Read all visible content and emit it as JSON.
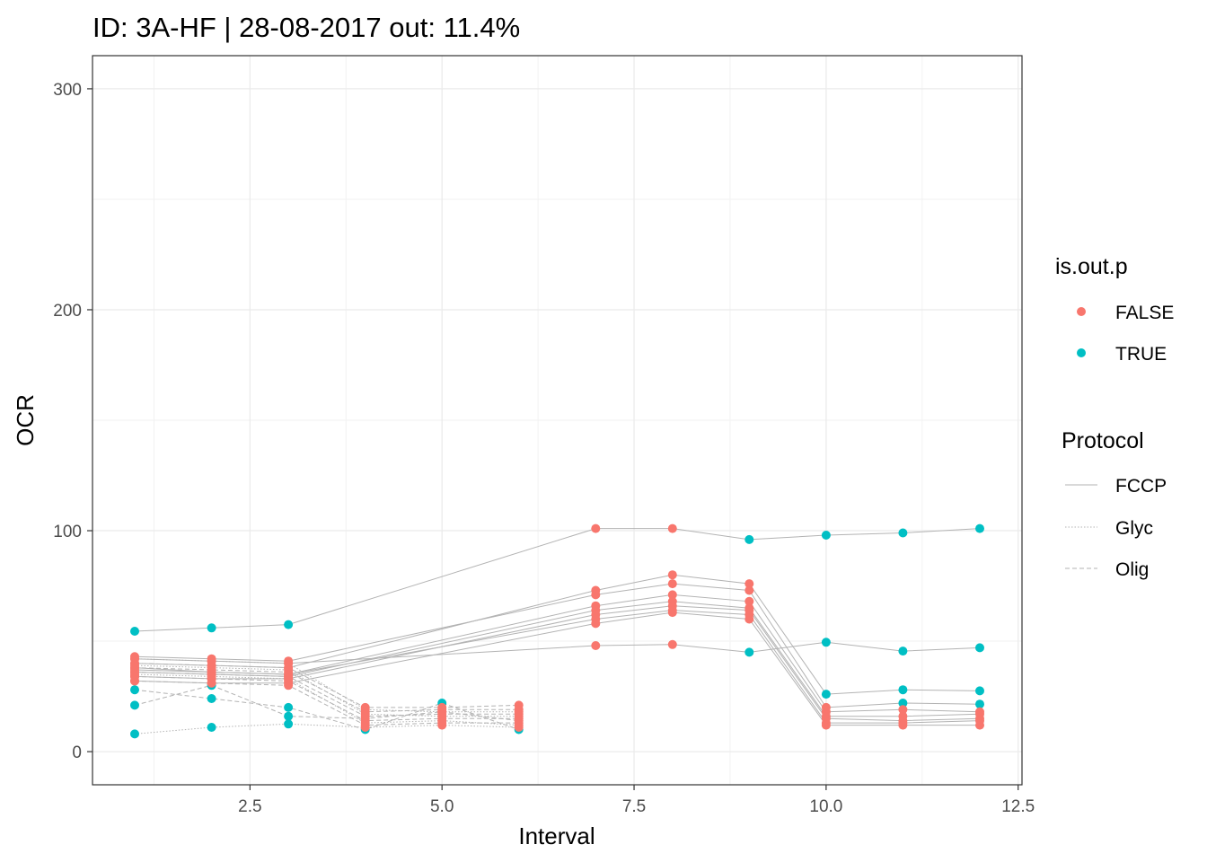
{
  "chart_data": {
    "type": "scatter",
    "title": "ID: 3A-HF | 28-08-2017  out: 11.4%",
    "xlabel": "Interval",
    "ylabel": "OCR",
    "xlim": [
      0.45,
      12.55
    ],
    "ylim": [
      -15,
      315
    ],
    "x_ticks": [
      2.5,
      5.0,
      7.5,
      10.0,
      12.5
    ],
    "x_tick_labels": [
      "2.5",
      "5.0",
      "7.5",
      "10.0",
      "12.5"
    ],
    "y_ticks": [
      0,
      100,
      200,
      300
    ],
    "y_tick_labels": [
      "0",
      "100",
      "200",
      "300"
    ],
    "grid": true,
    "colors": {
      "FALSE": "#F8766D",
      "TRUE": "#00BFC4",
      "line": "#b3b3b3",
      "grid": "#ebebeb"
    },
    "legend": {
      "placement": "right",
      "color_title": "is.out.p",
      "color_entries": [
        "FALSE",
        "TRUE"
      ],
      "linetype_title": "Protocol",
      "linetype_entries": [
        {
          "label": "FCCP",
          "dash": ""
        },
        {
          "label": "Glyc",
          "dash": "1.5,2"
        },
        {
          "label": "Olig",
          "dash": "5,3"
        }
      ]
    },
    "series": [
      {
        "protocol": "FCCP",
        "x": [
          1,
          2,
          3,
          7,
          8,
          9,
          10,
          11,
          12
        ],
        "values": [
          54.5,
          56,
          57.5,
          101,
          101,
          96,
          98,
          99,
          101
        ],
        "outlier": [
          true,
          true,
          true,
          false,
          false,
          true,
          true,
          true,
          true
        ]
      },
      {
        "protocol": "FCCP",
        "x": [
          1,
          2,
          3,
          7,
          8,
          9,
          10,
          11,
          12
        ],
        "values": [
          42,
          41,
          40,
          48,
          48.5,
          45,
          49.5,
          45.5,
          47
        ],
        "outlier": [
          false,
          false,
          false,
          false,
          false,
          true,
          true,
          true,
          true
        ]
      },
      {
        "protocol": "FCCP",
        "x": [
          1,
          2,
          3,
          7,
          8,
          9,
          10,
          11,
          12
        ],
        "values": [
          40,
          39,
          38,
          73,
          80,
          76,
          26,
          28,
          27.5
        ],
        "outlier": [
          false,
          false,
          false,
          false,
          false,
          false,
          true,
          true,
          true
        ]
      },
      {
        "protocol": "FCCP",
        "x": [
          1,
          2,
          3,
          7,
          8,
          9,
          10,
          11,
          12
        ],
        "values": [
          43,
          42,
          41,
          71,
          76,
          73,
          20,
          22,
          21.5
        ],
        "outlier": [
          false,
          false,
          false,
          false,
          false,
          false,
          false,
          true,
          true
        ]
      },
      {
        "protocol": "FCCP",
        "x": [
          1,
          2,
          3,
          7,
          8,
          9,
          10,
          11,
          12
        ],
        "values": [
          38,
          36,
          35,
          66,
          71,
          68,
          18,
          19,
          18
        ],
        "outlier": [
          false,
          false,
          false,
          false,
          false,
          false,
          false,
          false,
          false
        ]
      },
      {
        "protocol": "FCCP",
        "x": [
          1,
          2,
          3,
          7,
          8,
          9,
          10,
          11,
          12
        ],
        "values": [
          36,
          35,
          34,
          64,
          68,
          65,
          16,
          16,
          17
        ],
        "outlier": [
          false,
          false,
          false,
          false,
          false,
          false,
          false,
          false,
          false
        ]
      },
      {
        "protocol": "FCCP",
        "x": [
          1,
          2,
          3,
          7,
          8,
          9,
          10,
          11,
          12
        ],
        "values": [
          34,
          33,
          33,
          62,
          66,
          64,
          15,
          14,
          15
        ],
        "outlier": [
          false,
          false,
          false,
          false,
          false,
          false,
          false,
          false,
          false
        ]
      },
      {
        "protocol": "FCCP",
        "x": [
          1,
          2,
          3,
          7,
          8,
          9,
          10,
          11,
          12
        ],
        "values": [
          37,
          36,
          35,
          60,
          64,
          62,
          13,
          13,
          14
        ],
        "outlier": [
          false,
          false,
          false,
          false,
          false,
          false,
          false,
          false,
          false
        ]
      },
      {
        "protocol": "FCCP",
        "x": [
          1,
          2,
          3,
          7,
          8,
          9,
          10,
          11,
          12
        ],
        "values": [
          32,
          31,
          31,
          58,
          63,
          60,
          12,
          12,
          12
        ],
        "outlier": [
          false,
          false,
          false,
          false,
          false,
          false,
          false,
          false,
          false
        ]
      },
      {
        "protocol": "Olig",
        "x": [
          1,
          2,
          3,
          4,
          5,
          6
        ],
        "values": [
          28,
          24,
          20,
          10,
          22,
          10
        ],
        "outlier": [
          true,
          true,
          true,
          true,
          true,
          true
        ]
      },
      {
        "protocol": "Olig",
        "x": [
          1,
          2,
          3,
          4,
          5,
          6
        ],
        "values": [
          21,
          30,
          16,
          15,
          18,
          14
        ],
        "outlier": [
          true,
          true,
          true,
          false,
          false,
          false
        ]
      },
      {
        "protocol": "Olig",
        "x": [
          1,
          2,
          3,
          4,
          5,
          6
        ],
        "values": [
          40,
          39,
          38,
          20,
          20,
          21
        ],
        "outlier": [
          false,
          false,
          false,
          false,
          false,
          false
        ]
      },
      {
        "protocol": "Olig",
        "x": [
          1,
          2,
          3,
          4,
          5,
          6
        ],
        "values": [
          38,
          37,
          36,
          18,
          19,
          19
        ],
        "outlier": [
          false,
          false,
          false,
          false,
          false,
          false
        ]
      },
      {
        "protocol": "Olig",
        "x": [
          1,
          2,
          3,
          4,
          5,
          6
        ],
        "values": [
          36,
          35,
          34,
          16,
          17,
          17
        ],
        "outlier": [
          false,
          false,
          false,
          false,
          false,
          false
        ]
      },
      {
        "protocol": "Olig",
        "x": [
          1,
          2,
          3,
          4,
          5,
          6
        ],
        "values": [
          34,
          33,
          32,
          14,
          15,
          15
        ],
        "outlier": [
          false,
          false,
          false,
          false,
          false,
          false
        ]
      },
      {
        "protocol": "Olig",
        "x": [
          1,
          2,
          3,
          4,
          5,
          6
        ],
        "values": [
          32,
          31,
          30,
          12,
          13,
          13
        ],
        "outlier": [
          false,
          false,
          false,
          false,
          false,
          false
        ]
      },
      {
        "protocol": "Glyc",
        "x": [
          1,
          2,
          3,
          4,
          5,
          6
        ],
        "values": [
          8,
          11,
          12.5,
          11,
          12,
          11
        ],
        "outlier": [
          true,
          true,
          true,
          false,
          false,
          false
        ]
      },
      {
        "protocol": "Glyc",
        "x": [
          1,
          2,
          3,
          4,
          5,
          6
        ],
        "values": [
          42,
          41,
          40,
          19,
          18,
          18
        ],
        "outlier": [
          false,
          false,
          false,
          false,
          false,
          false
        ]
      },
      {
        "protocol": "Glyc",
        "x": [
          1,
          2,
          3,
          4,
          5,
          6
        ],
        "values": [
          39,
          38,
          37,
          17,
          16,
          16
        ],
        "outlier": [
          false,
          false,
          false,
          false,
          false,
          false
        ]
      },
      {
        "protocol": "Glyc",
        "x": [
          1,
          2,
          3,
          4,
          5,
          6
        ],
        "values": [
          35,
          34,
          33,
          13,
          14,
          12
        ],
        "outlier": [
          false,
          false,
          false,
          false,
          false,
          false
        ]
      }
    ]
  }
}
